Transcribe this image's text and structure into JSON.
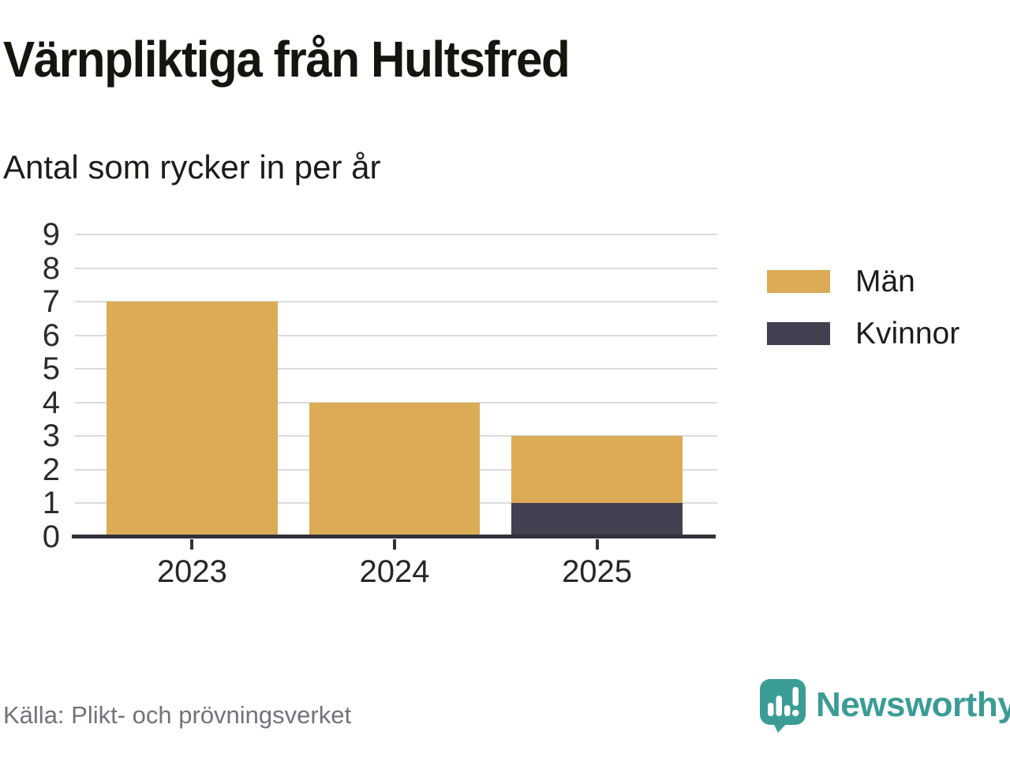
{
  "title": "Värnpliktiga från Hultsfred",
  "subtitle": "Antal som rycker in per år",
  "source": "Källa: Plikt- och prövningsverket",
  "brand": {
    "name": "Newsworthy",
    "color": "#3a9c95",
    "logo_icon": "speech-bubble-bar-chart-icon"
  },
  "colors": {
    "men": "#dbab56",
    "women": "#414050",
    "grid": "#dbdbdb",
    "axis": "#32323b",
    "tick_text": "#2b2b2b",
    "muted_text": "#70737a"
  },
  "legend": [
    {
      "label": "Män",
      "color": "#dbab56"
    },
    {
      "label": "Kvinnor",
      "color": "#414050"
    }
  ],
  "chart_data": {
    "type": "bar",
    "stacked": true,
    "title": "Värnpliktiga från Hultsfred",
    "subtitle": "Antal som rycker in per år",
    "categories": [
      "2023",
      "2024",
      "2025"
    ],
    "series": [
      {
        "name": "Män",
        "color": "#dbab56",
        "values": [
          7,
          4,
          2
        ]
      },
      {
        "name": "Kvinnor",
        "color": "#414050",
        "values": [
          0,
          0,
          1
        ]
      }
    ],
    "totals": [
      7,
      4,
      3
    ],
    "xlabel": "",
    "ylabel": "",
    "ylim": [
      0,
      9
    ],
    "yticks": [
      0,
      1,
      2,
      3,
      4,
      5,
      6,
      7,
      8,
      9
    ],
    "grid": "horizontal",
    "legend_position": "right"
  }
}
